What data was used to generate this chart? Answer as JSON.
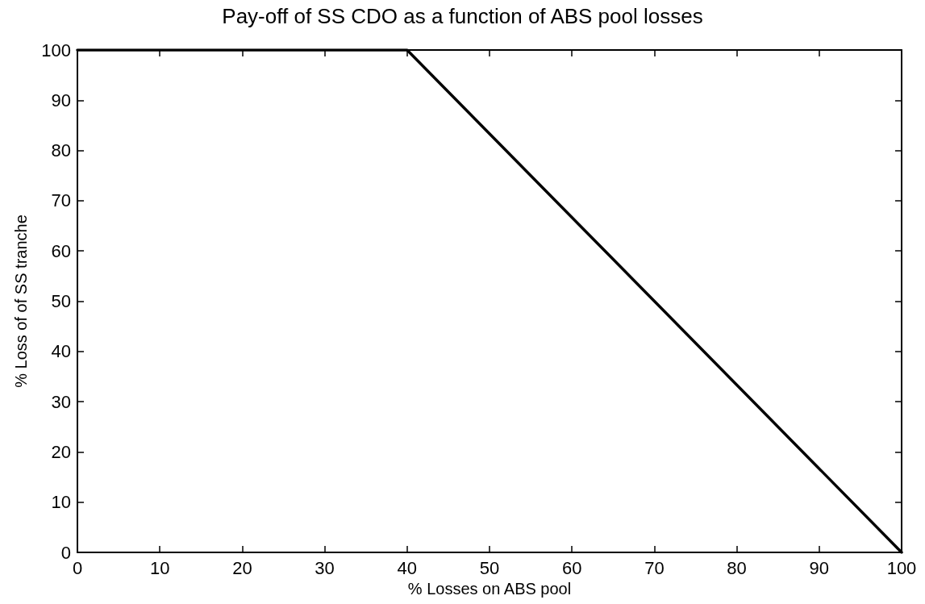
{
  "chart_data": {
    "type": "line",
    "title": "Pay-off of SS CDO as a function of ABS pool losses",
    "xlabel": "% Losses on ABS pool",
    "ylabel": "% Loss of of SS tranche",
    "x": [
      0,
      40,
      100
    ],
    "series": [
      {
        "color": "#000000",
        "values": [
          100,
          100,
          0
        ]
      }
    ],
    "xlim": [
      0,
      100
    ],
    "xticks": [
      0,
      10,
      20,
      30,
      40,
      50,
      60,
      70,
      80,
      90,
      100
    ],
    "ylim": [
      0,
      100
    ],
    "yticks": [
      0,
      10,
      20,
      30,
      40,
      50,
      60,
      70,
      80,
      90,
      100
    ],
    "grid": false,
    "marker": "none",
    "line_style": "solid"
  }
}
